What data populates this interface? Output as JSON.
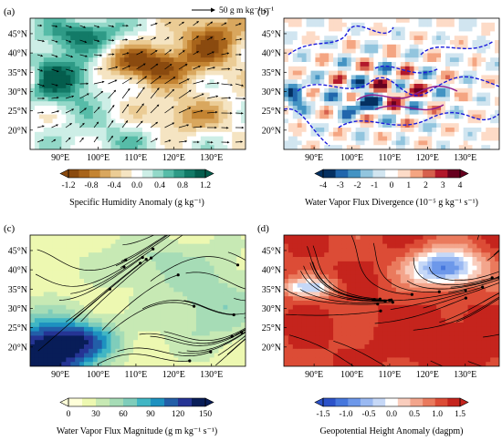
{
  "figure": {
    "reference_vector_label": "50 g m kg⁻¹ s⁻¹",
    "lat_ticks": [
      "45°N",
      "40°N",
      "35°N",
      "30°N",
      "25°N",
      "20°N"
    ],
    "lon_ticks": [
      "90°E",
      "100°E",
      "110°E",
      "120°E",
      "130°E"
    ]
  },
  "chart_data": [
    {
      "panel": "(a)",
      "type": "heatmap",
      "field": "specific humidity anomaly with water vapor flux vectors",
      "colorbar": {
        "label": "Specific Humidity Anomaly (g kg⁻¹)",
        "ticks": [
          "-1.2",
          "-0.8",
          "-0.4",
          "0.0",
          "0.4",
          "0.8",
          "1.2"
        ],
        "range": [
          -1.2,
          1.2
        ],
        "colors": [
          "#8a4a0f",
          "#a8641b",
          "#c48432",
          "#d9a75e",
          "#ebcc95",
          "#f5e4c2",
          "#ffffff",
          "#cdeee6",
          "#93d8c8",
          "#57bca8",
          "#2e9a86",
          "#127a67",
          "#045d4d"
        ]
      },
      "xlim": [
        82,
        139
      ],
      "ylim": [
        15,
        49
      ]
    },
    {
      "panel": "(b)",
      "type": "heatmap",
      "field": "water vapor flux divergence with dashed contours",
      "colorbar": {
        "label": "Water Vapor Flux Divergence (10⁻⁵ g kg⁻¹ s⁻¹)",
        "ticks": [
          "-4",
          "-3",
          "-2",
          "-1",
          "0",
          "1",
          "2",
          "3",
          "4"
        ],
        "range": [
          -4,
          4
        ],
        "colors": [
          "#053061",
          "#2166ac",
          "#4393c3",
          "#92c5de",
          "#d1e5f0",
          "#ffffff",
          "#fddbc7",
          "#f4a582",
          "#d6604d",
          "#b2182b",
          "#67001f"
        ]
      },
      "xlim": [
        82,
        139
      ],
      "ylim": [
        15,
        49
      ]
    },
    {
      "panel": "(c)",
      "type": "heatmap",
      "field": "water vapor flux magnitude with streamlines",
      "colorbar": {
        "label": "Water Vapor Flux Magnitude (g m kg⁻¹ s⁻¹)",
        "ticks": [
          "0",
          "30",
          "60",
          "90",
          "120",
          "150"
        ],
        "range": [
          0,
          150
        ],
        "colors": [
          "#ffffd9",
          "#edf8b1",
          "#c7e9b4",
          "#a6dcb6",
          "#7fcdbb",
          "#41b6c4",
          "#1d91c0",
          "#225ea8",
          "#253494",
          "#081d58"
        ]
      },
      "xlim": [
        82,
        139
      ],
      "ylim": [
        15,
        49
      ]
    },
    {
      "panel": "(d)",
      "type": "heatmap",
      "field": "geopotential height anomaly with streamlines",
      "colorbar": {
        "label": "Geopotential Height Anomaly (dagpm)",
        "ticks": [
          "-1.5",
          "-1.0",
          "-0.5",
          "0.0",
          "0.5",
          "1.0",
          "1.5"
        ],
        "range": [
          -1.5,
          1.5
        ],
        "colors": [
          "#2c52c9",
          "#4677dd",
          "#6d98ea",
          "#9ab9f2",
          "#c6d8f7",
          "#ffffff",
          "#f9cdbd",
          "#f3a58c",
          "#ea7a5d",
          "#dc4c36",
          "#c5241d"
        ]
      },
      "xlim": [
        82,
        139
      ],
      "ylim": [
        15,
        49
      ]
    }
  ]
}
